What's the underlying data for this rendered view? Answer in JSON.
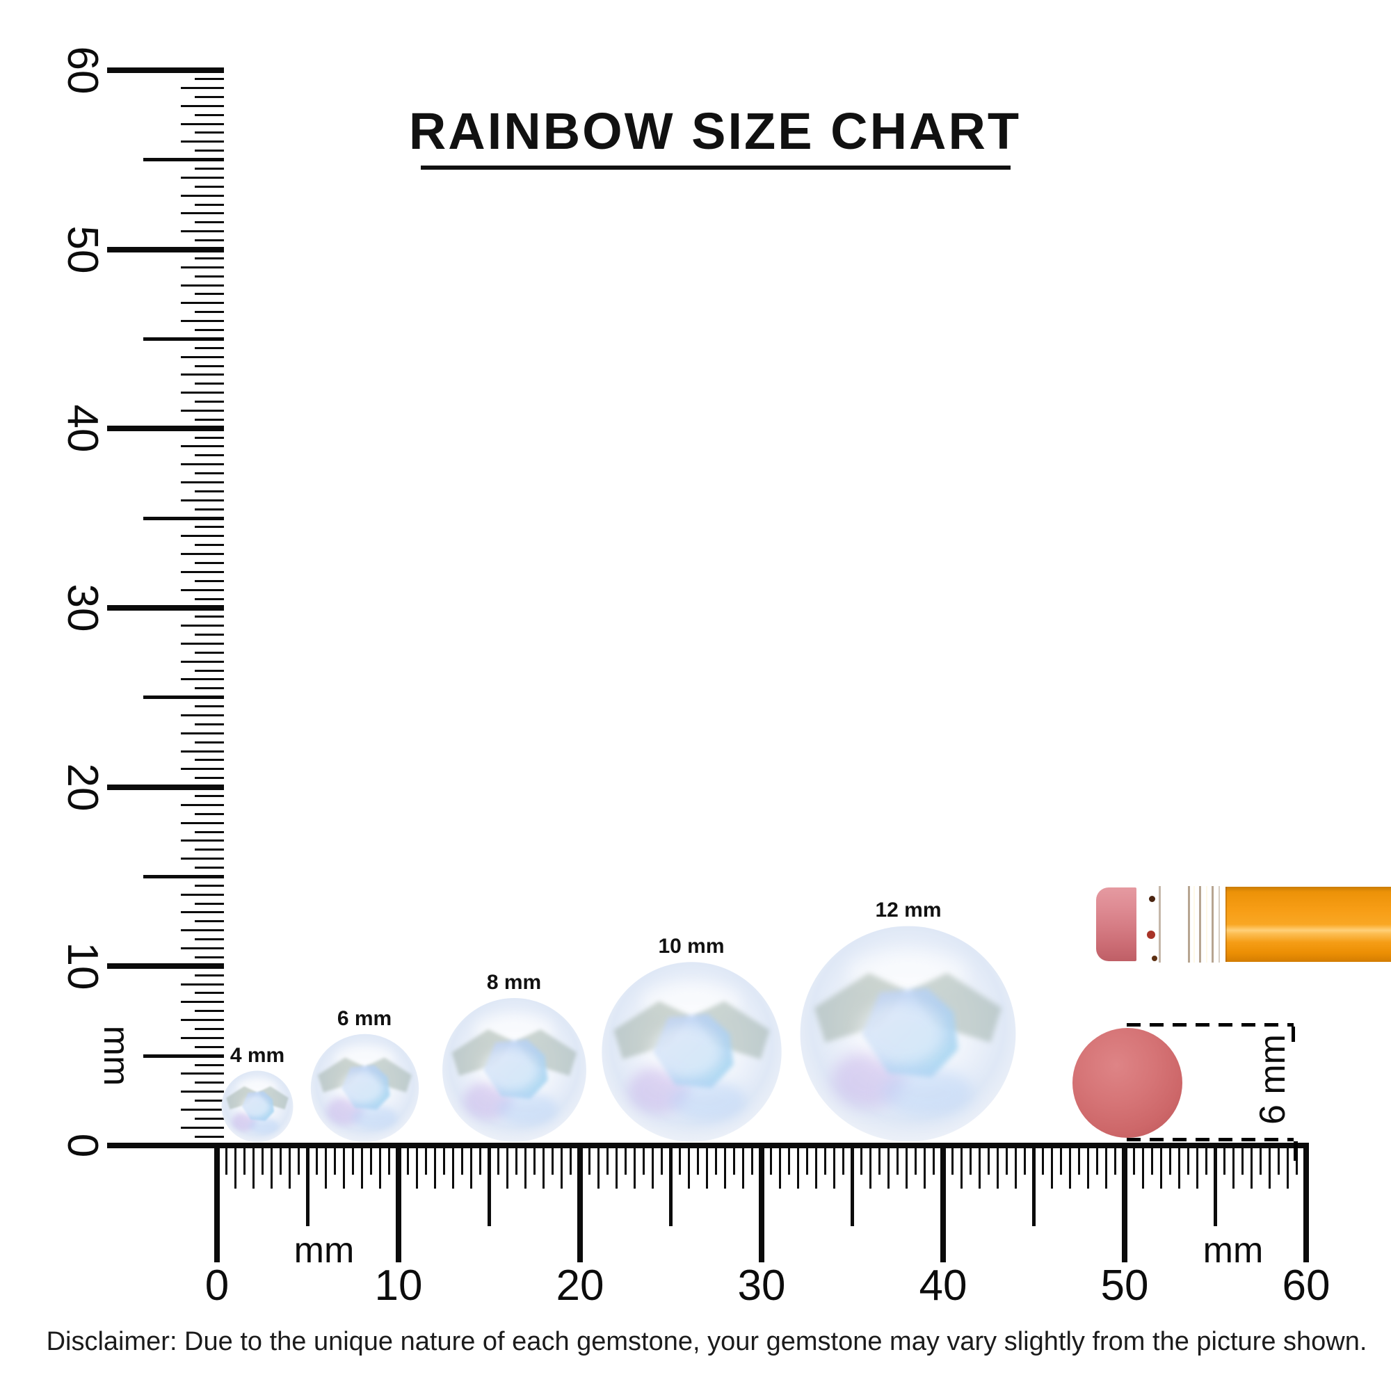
{
  "title": {
    "text": "RAINBOW SIZE CHART"
  },
  "rulers": {
    "unit_label": "mm",
    "vertical": {
      "min_mm": 0,
      "max_mm": 60,
      "tick_step_mm": 0.5,
      "number_labels": [
        "0",
        "10",
        "20",
        "30",
        "40",
        "50",
        "60"
      ]
    },
    "horizontal": {
      "min_mm": 0,
      "max_mm": 60,
      "tick_step_mm": 0.5,
      "number_labels": [
        "0",
        "10",
        "20",
        "30",
        "40",
        "50",
        "60"
      ]
    }
  },
  "gems": [
    {
      "label": "4 mm",
      "size_mm": 4
    },
    {
      "label": "6 mm",
      "size_mm": 6
    },
    {
      "label": "8 mm",
      "size_mm": 8
    },
    {
      "label": "10 mm",
      "size_mm": 10
    },
    {
      "label": "12 mm",
      "size_mm": 12
    }
  ],
  "reference_objects": {
    "pencil": {
      "description": "pencil eraser end"
    },
    "eraser_disk": {
      "label": "6 mm",
      "diameter_mm": 6
    }
  },
  "disclaimer": "Disclaimer: Due to the unique nature of each gemstone, your gemstone may vary slightly from the picture shown.",
  "colors": {
    "ink": "#0c0c0c",
    "pencil_body_orange": "#f9a01b",
    "pencil_ferrule_gold": "#e9c78c",
    "pencil_eraser_pink": "#d67d85",
    "eraser_disk_red": "#d06c6e",
    "gem_blue": "#aecdf2",
    "gem_gray_facet": "#93a79b",
    "gem_lavender": "#c9b6ea"
  }
}
